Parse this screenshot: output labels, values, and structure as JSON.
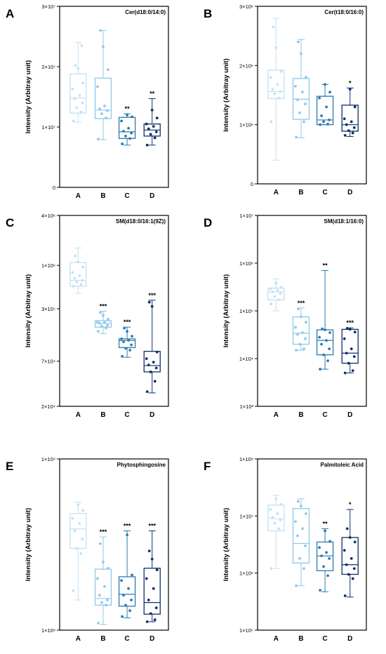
{
  "colors": {
    "A": "#c3e1f4",
    "B": "#8fc8ea",
    "C": "#2c79b0",
    "D": "#0e2f6a"
  },
  "chart_data": [
    {
      "panel": "A",
      "title": "Cer(d18:0/14:0)",
      "type": "box",
      "scale": "linear",
      "ylabel": "Intensity (Arbitray unit)",
      "ylim": [
        0,
        30000000
      ],
      "yticks": [
        {
          "v": 0,
          "label": "0"
        },
        {
          "v": 10000000,
          "label": "1×10⁷"
        },
        {
          "v": 20000000,
          "label": "2×10⁷"
        },
        {
          "v": 30000000,
          "label": "3×10⁷"
        }
      ],
      "categories": [
        "A",
        "B",
        "C",
        "D"
      ],
      "boxes": [
        {
          "cat": "A",
          "min": 10800000,
          "q1": 12300000,
          "median": 14800000,
          "q3": 18800000,
          "max": 24000000,
          "sig": "",
          "points": [
            11000000,
            12500000,
            13200000,
            14000000,
            14700000,
            15200000,
            16300000,
            17300000,
            19700000,
            20200000,
            23500000
          ]
        },
        {
          "cat": "B",
          "min": 7900000,
          "q1": 11400000,
          "median": 12800000,
          "q3": 18100000,
          "max": 26000000,
          "sig": "",
          "points": [
            8000000,
            11500000,
            12200000,
            12700000,
            13000000,
            13500000,
            16700000,
            19500000,
            23300000,
            26000000
          ]
        },
        {
          "cat": "C",
          "min": 7000000,
          "q1": 8100000,
          "median": 9200000,
          "q3": 11600000,
          "max": 12200000,
          "sig": "**",
          "points": [
            7200000,
            8100000,
            8500000,
            9000000,
            9300000,
            9800000,
            11000000,
            11700000,
            12000000
          ]
        },
        {
          "cat": "D",
          "min": 7000000,
          "q1": 8500000,
          "median": 9500000,
          "q3": 10500000,
          "max": 14700000,
          "sig": "**",
          "points": [
            7000000,
            8200000,
            8800000,
            9200000,
            9700000,
            10100000,
            10500000,
            11500000,
            12800000
          ]
        }
      ]
    },
    {
      "panel": "B",
      "title": "Cer(t18:0/16:0)",
      "type": "box",
      "scale": "linear",
      "ylabel": "Intensity (Arbitray unit)",
      "ylim": [
        0,
        3000000
      ],
      "yticks": [
        {
          "v": 0,
          "label": "0"
        },
        {
          "v": 1000000,
          "label": "1×10⁶"
        },
        {
          "v": 2000000,
          "label": "2×10⁶"
        },
        {
          "v": 3000000,
          "label": "3×10⁶"
        }
      ],
      "categories": [
        "A",
        "B",
        "C",
        "D"
      ],
      "boxes": [
        {
          "cat": "A",
          "min": 400000,
          "q1": 1440000,
          "median": 1560000,
          "q3": 1920000,
          "max": 2800000,
          "sig": "",
          "points": [
            1050000,
            1450000,
            1520000,
            1560000,
            1600000,
            1680000,
            1800000,
            1900000,
            2300000,
            2650000
          ]
        },
        {
          "cat": "B",
          "min": 780000,
          "q1": 1090000,
          "median": 1430000,
          "q3": 1780000,
          "max": 2440000,
          "sig": "",
          "points": [
            790000,
            1050000,
            1200000,
            1350000,
            1420000,
            1550000,
            1650000,
            1800000,
            2200000,
            2400000
          ]
        },
        {
          "cat": "C",
          "min": 1000000,
          "q1": 1000000,
          "median": 1080000,
          "q3": 1480000,
          "max": 1680000,
          "sig": "",
          "points": [
            1000000,
            1010000,
            1050000,
            1080000,
            1150000,
            1300000,
            1450000,
            1550000,
            1680000
          ]
        },
        {
          "cat": "D",
          "min": 800000,
          "q1": 890000,
          "median": 1000000,
          "q3": 1330000,
          "max": 1620000,
          "sig": "*",
          "points": [
            820000,
            860000,
            900000,
            950000,
            1000000,
            1050000,
            1100000,
            1300000,
            1600000
          ]
        }
      ]
    },
    {
      "panel": "C",
      "title": "SM(d18:0/16:1(9Z))",
      "type": "box",
      "scale": "log",
      "ylabel": "Intensity (Arbitray unit)",
      "ylim": [
        20000,
        4000000
      ],
      "yticks": [
        {
          "v": 20000,
          "label": "2×10⁴"
        },
        {
          "v": 70000,
          "label": "7×10⁴"
        },
        {
          "v": 300000,
          "label": "3×10⁵"
        },
        {
          "v": 1000000,
          "label": "1×10⁶"
        },
        {
          "v": 4000000,
          "label": "4×10⁶"
        }
      ],
      "categories": [
        "A",
        "B",
        "C",
        "D"
      ],
      "boxes": [
        {
          "cat": "A",
          "min": 460000,
          "q1": 560000,
          "median": 660000,
          "q3": 1080000,
          "max": 1620000,
          "sig": "",
          "points": [
            560000,
            590000,
            630000,
            660000,
            700000,
            750000,
            820000,
            950000,
            1100000,
            1300000
          ]
        },
        {
          "cat": "B",
          "min": 150000,
          "q1": 180000,
          "median": 200000,
          "q3": 215000,
          "max": 280000,
          "sig": "***",
          "points": [
            160000,
            175000,
            185000,
            190000,
            200000,
            205000,
            210000,
            225000,
            250000,
            270000
          ]
        },
        {
          "cat": "C",
          "min": 78000,
          "q1": 102000,
          "median": 124000,
          "q3": 130000,
          "max": 180000,
          "sig": "***",
          "points": [
            80000,
            95000,
            100000,
            110000,
            120000,
            125000,
            130000,
            140000,
            160000,
            175000
          ]
        },
        {
          "cat": "D",
          "min": 29000,
          "q1": 52000,
          "median": 62000,
          "q3": 92000,
          "max": 380000,
          "sig": "***",
          "points": [
            30000,
            40000,
            52000,
            58000,
            63000,
            68000,
            75000,
            90000,
            320000,
            360000
          ]
        }
      ]
    },
    {
      "panel": "D",
      "title": "SM(d18:1/16:0)",
      "type": "box",
      "scale": "log",
      "ylabel": "Intensity (Arbitray unit)",
      "ylim": [
        1000,
        10000000
      ],
      "yticks": [
        {
          "v": 1000,
          "label": "1×10³"
        },
        {
          "v": 10000,
          "label": "1×10⁴"
        },
        {
          "v": 100000,
          "label": "1×10⁵"
        },
        {
          "v": 1000000,
          "label": "1×10⁶"
        },
        {
          "v": 10000000,
          "label": "1×10⁷"
        }
      ],
      "categories": [
        "A",
        "B",
        "C",
        "D"
      ],
      "boxes": [
        {
          "cat": "A",
          "min": 100000,
          "q1": 170000,
          "median": 250000,
          "q3": 300000,
          "max": 470000,
          "sig": "",
          "points": [
            140000,
            170000,
            200000,
            230000,
            250000,
            270000,
            290000,
            310000,
            380000
          ]
        },
        {
          "cat": "B",
          "min": 15000,
          "q1": 20000,
          "median": 34000,
          "q3": 75000,
          "max": 115000,
          "sig": "***",
          "points": [
            15000,
            16000,
            20000,
            26000,
            32000,
            35000,
            45000,
            58000,
            75000,
            110000
          ]
        },
        {
          "cat": "C",
          "min": 6000,
          "q1": 12000,
          "median": 24000,
          "q3": 40000,
          "max": 700000,
          "sig": "**",
          "points": [
            6000,
            9000,
            12000,
            16000,
            20000,
            24000,
            28000,
            35000,
            40000,
            42000
          ]
        },
        {
          "cat": "D",
          "min": 5000,
          "q1": 8000,
          "median": 13000,
          "q3": 41000,
          "max": 44000,
          "sig": "***",
          "points": [
            5000,
            5600,
            8000,
            11000,
            13000,
            16000,
            26000,
            36000,
            41000,
            43000
          ]
        }
      ]
    },
    {
      "panel": "E",
      "title": "Phytosphingosine",
      "type": "box",
      "scale": "log",
      "ylabel": "Intensity (Arbitray unit)",
      "ylim": [
        100000000,
        1000000000
      ],
      "yticks": [
        {
          "v": 100000000,
          "label": "1×10⁸"
        },
        {
          "v": 1000000000,
          "label": "1×10⁹"
        }
      ],
      "categories": [
        "A",
        "B",
        "C",
        "D"
      ],
      "boxes": [
        {
          "cat": "A",
          "min": 150000000,
          "q1": 300000000,
          "median": 390000000,
          "q3": 480000000,
          "max": 560000000,
          "sig": "",
          "points": [
            170000000,
            280000000,
            300000000,
            340000000,
            380000000,
            420000000,
            450000000,
            500000000,
            540000000
          ]
        },
        {
          "cat": "B",
          "min": 108000000,
          "q1": 140000000,
          "median": 153000000,
          "q3": 227000000,
          "max": 350000000,
          "sig": "***",
          "points": [
            110000000,
            140000000,
            145000000,
            150000000,
            160000000,
            180000000,
            200000000,
            230000000,
            250000000,
            320000000
          ]
        },
        {
          "cat": "C",
          "min": 118000000,
          "q1": 138000000,
          "median": 162000000,
          "q3": 205000000,
          "max": 380000000,
          "sig": "***",
          "points": [
            120000000,
            130000000,
            140000000,
            150000000,
            160000000,
            175000000,
            195000000,
            210000000,
            360000000
          ]
        },
        {
          "cat": "D",
          "min": 112000000,
          "q1": 124000000,
          "median": 145000000,
          "q3": 230000000,
          "max": 380000000,
          "sig": "***",
          "points": [
            112000000,
            115000000,
            125000000,
            135000000,
            150000000,
            175000000,
            200000000,
            225000000,
            260000000,
            290000000
          ]
        }
      ]
    },
    {
      "panel": "F",
      "title": "Palmitoleic Acid",
      "type": "box",
      "scale": "log",
      "ylabel": "Intensity (Arbitray unit)",
      "ylim": [
        100000,
        100000000
      ],
      "yticks": [
        {
          "v": 100000,
          "label": "1×10⁵"
        },
        {
          "v": 1000000,
          "label": "1×10⁶"
        },
        {
          "v": 10000000,
          "label": "1×10⁷"
        },
        {
          "v": 100000000,
          "label": "1×10⁸"
        }
      ],
      "categories": [
        "A",
        "B",
        "C",
        "D"
      ],
      "boxes": [
        {
          "cat": "A",
          "min": 1200000,
          "q1": 5500000,
          "median": 9000000,
          "q3": 15500000,
          "max": 23000000,
          "sig": "",
          "points": [
            1200000,
            6000000,
            7500000,
            8500000,
            9500000,
            11000000,
            13000000,
            16000000,
            20000000
          ]
        },
        {
          "cat": "B",
          "min": 600000,
          "q1": 1500000,
          "median": 3300000,
          "q3": 13500000,
          "max": 20000000,
          "sig": "",
          "points": [
            600000,
            1200000,
            1800000,
            3000000,
            4500000,
            6000000,
            8000000,
            11000000,
            15000000,
            18000000
          ]
        },
        {
          "cat": "C",
          "min": 470000,
          "q1": 1100000,
          "median": 2000000,
          "q3": 3500000,
          "max": 6000000,
          "sig": "**",
          "points": [
            500000,
            900000,
            1300000,
            1800000,
            2000000,
            2300000,
            2800000,
            3600000,
            5500000
          ]
        },
        {
          "cat": "D",
          "min": 380000,
          "q1": 950000,
          "median": 1400000,
          "q3": 4200000,
          "max": 13000000,
          "sig": "*",
          "points": [
            400000,
            800000,
            950000,
            1200000,
            1400000,
            1800000,
            2500000,
            3500000,
            4200000,
            6000000
          ]
        }
      ]
    }
  ]
}
